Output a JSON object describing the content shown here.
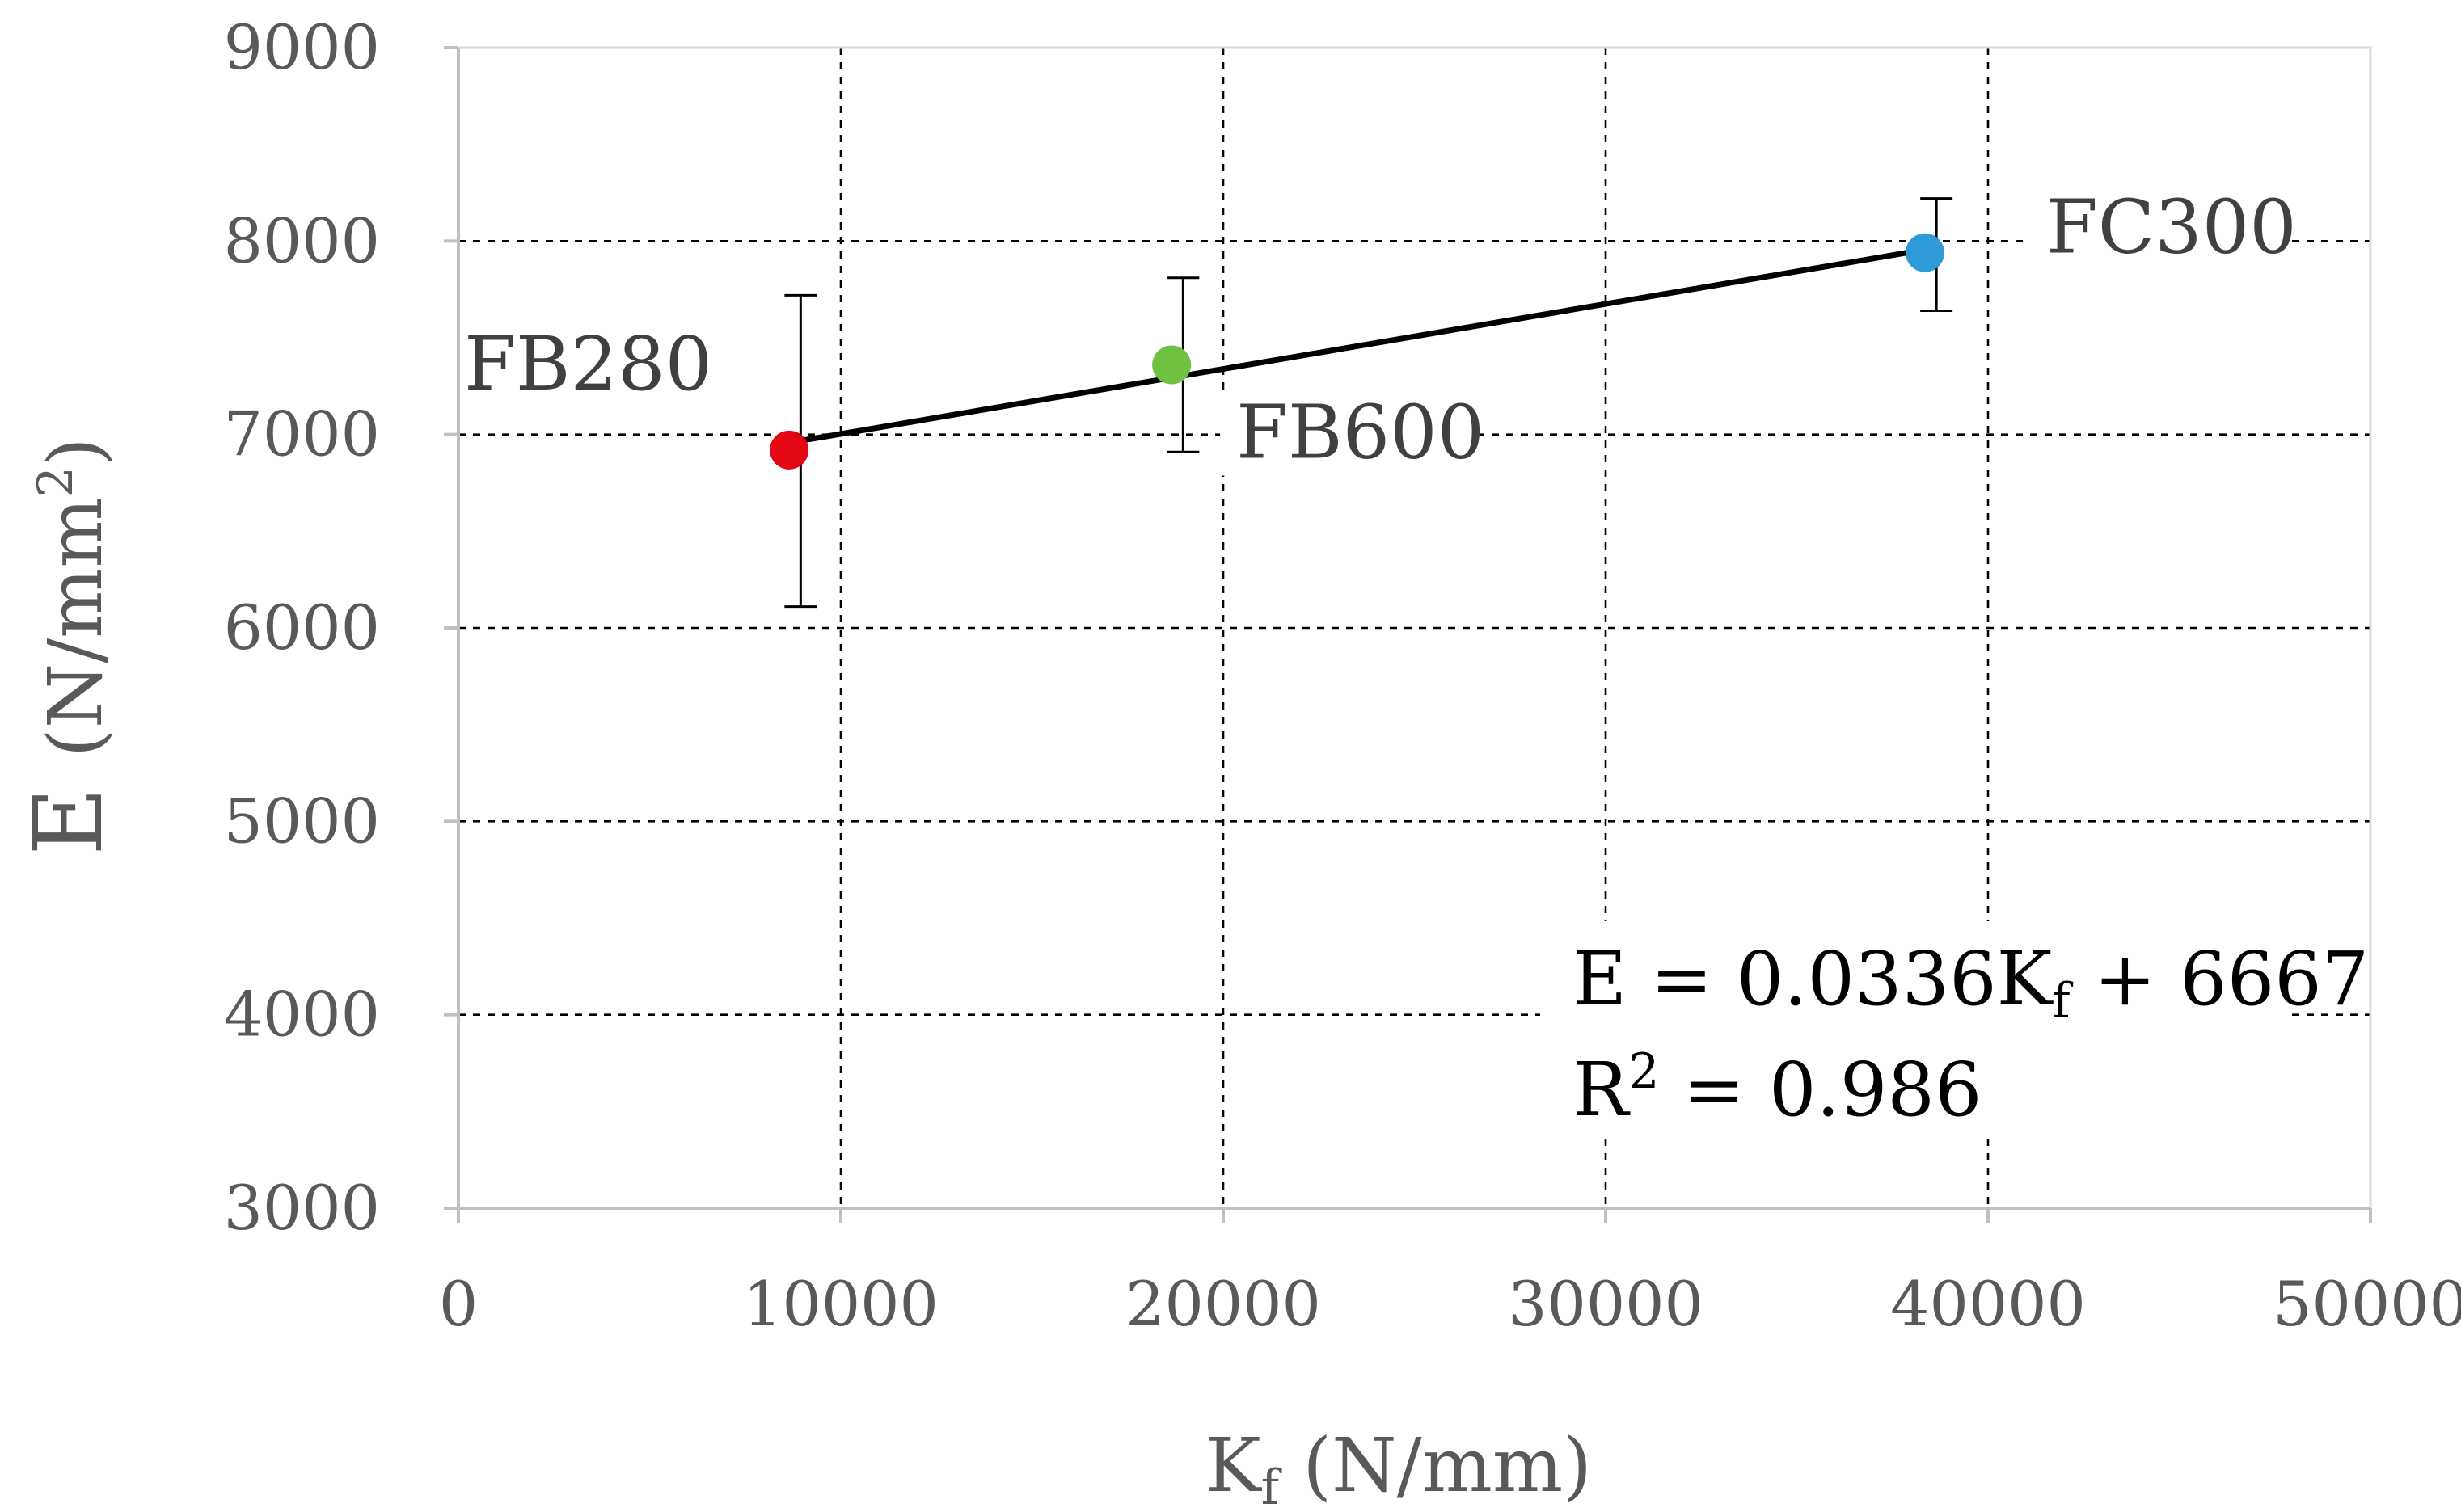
{
  "chart_data": {
    "type": "scatter",
    "title": "",
    "xlabel": {
      "main": "K",
      "sub": "f",
      "rest": " (N/mm)"
    },
    "ylabel": {
      "main": "E ",
      "rest": "(N/mm",
      "sup": "2",
      "close": ")"
    },
    "xlim": [
      0,
      50000
    ],
    "ylim": [
      3000,
      9000
    ],
    "xticks": [
      0,
      10000,
      20000,
      30000,
      40000,
      50000
    ],
    "yticks": [
      3000,
      4000,
      5000,
      6000,
      7000,
      8000,
      9000
    ],
    "grid": true,
    "points": [
      {
        "name": "FB280",
        "x": 8650,
        "y": 6920,
        "err_low": 6110,
        "err_high": 7720,
        "color": "#e30613",
        "label_side": "upper-left"
      },
      {
        "name": "FB600",
        "x": 18650,
        "y": 7360,
        "err_low": 6910,
        "err_high": 7810,
        "color": "#70c042",
        "label_side": "lower-right"
      },
      {
        "name": "FC300",
        "x": 38350,
        "y": 7940,
        "err_low": 7640,
        "err_high": 8220,
        "color": "#2e9ad8",
        "label_side": "upper-right"
      }
    ],
    "trendline": {
      "slope": 0.0336,
      "intercept": 6667,
      "x_range": [
        8650,
        38350
      ],
      "equation": {
        "lhs": "E = 0.0336K",
        "sub": "f",
        "rhs": " + 6667"
      },
      "r2": {
        "lhs": "R",
        "sup": "2",
        "rhs": " = 0.986"
      }
    }
  }
}
